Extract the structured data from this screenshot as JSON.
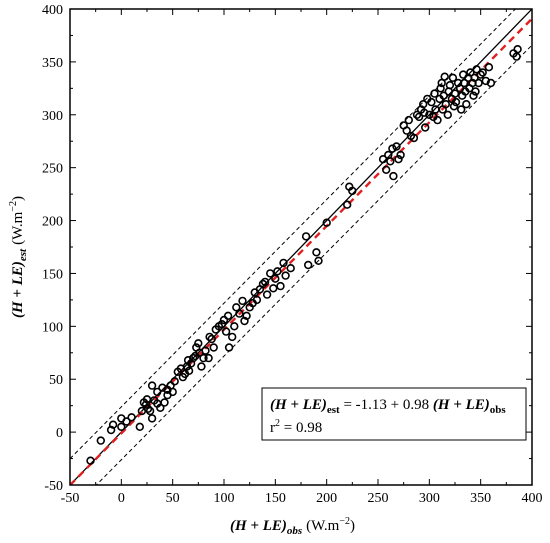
{
  "chart_data": {
    "type": "scatter",
    "xlabel": {
      "main": "(H + LE)",
      "sub": "obs",
      "unit": "(W.m",
      "unit_exp": "−2",
      "unit_close": ")"
    },
    "ylabel": {
      "main": "(H + LE)",
      "sub": "est",
      "unit": "(W.m",
      "unit_exp": "−2",
      "unit_close": ")"
    },
    "xlim": [
      -50,
      400
    ],
    "ylim": [
      -50,
      400
    ],
    "xticks": [
      "-50",
      "0",
      "50",
      "100",
      "150",
      "200",
      "250",
      "300",
      "350",
      "400"
    ],
    "yticks": [
      "-50",
      "0",
      "50",
      "100",
      "150",
      "200",
      "250",
      "300",
      "350",
      "400"
    ],
    "grid": false,
    "legend": {
      "placement": "bottom-right",
      "eq_lhs_main": "(H + LE)",
      "eq_lhs_sub": "est",
      "eq_mid": " = -1.13 + 0.98 ",
      "eq_rhs_main": "(H + LE)",
      "eq_rhs_sub": "obs",
      "r2_base": "r",
      "r2_exp": "2",
      "r2_value": " = 0.98"
    },
    "lines": {
      "one_to_one": {
        "x": [
          -50,
          400
        ],
        "y": [
          -50,
          400
        ],
        "color": "#000000",
        "style": "solid"
      },
      "fit": {
        "x": [
          -50,
          400
        ],
        "y": [
          -50.13,
          390.87
        ],
        "color": "#e02020",
        "style": "dashed"
      },
      "upper_bound": {
        "x": [
          -50,
          400
        ],
        "y": [
          -25.13,
          415.87
        ],
        "color": "#000000",
        "style": "dotted"
      },
      "lower_bound": {
        "x": [
          -50,
          400
        ],
        "y": [
          -75.13,
          365.87
        ],
        "color": "#000000",
        "style": "dotted"
      }
    },
    "points": [
      [
        -30,
        -27
      ],
      [
        -20,
        -8
      ],
      [
        -10,
        2
      ],
      [
        -8,
        7
      ],
      [
        0,
        5
      ],
      [
        0,
        13
      ],
      [
        5,
        10
      ],
      [
        10,
        14
      ],
      [
        18,
        5
      ],
      [
        20,
        20
      ],
      [
        22,
        28
      ],
      [
        24,
        26
      ],
      [
        25,
        31
      ],
      [
        26,
        22
      ],
      [
        28,
        20
      ],
      [
        30,
        13
      ],
      [
        30,
        44
      ],
      [
        32,
        30
      ],
      [
        35,
        27
      ],
      [
        35,
        38
      ],
      [
        38,
        23
      ],
      [
        40,
        42
      ],
      [
        42,
        28
      ],
      [
        45,
        35
      ],
      [
        45,
        40
      ],
      [
        48,
        44
      ],
      [
        50,
        38
      ],
      [
        52,
        48
      ],
      [
        55,
        57
      ],
      [
        58,
        60
      ],
      [
        60,
        52
      ],
      [
        62,
        55
      ],
      [
        64,
        62
      ],
      [
        65,
        68
      ],
      [
        66,
        58
      ],
      [
        68,
        65
      ],
      [
        70,
        70
      ],
      [
        72,
        72
      ],
      [
        73,
        80
      ],
      [
        75,
        84
      ],
      [
        76,
        75
      ],
      [
        78,
        62
      ],
      [
        80,
        70
      ],
      [
        82,
        77
      ],
      [
        85,
        70
      ],
      [
        86,
        90
      ],
      [
        88,
        88
      ],
      [
        90,
        80
      ],
      [
        92,
        97
      ],
      [
        95,
        100
      ],
      [
        98,
        102
      ],
      [
        100,
        106
      ],
      [
        102,
        95
      ],
      [
        104,
        110
      ],
      [
        105,
        80
      ],
      [
        108,
        90
      ],
      [
        110,
        100
      ],
      [
        112,
        118
      ],
      [
        115,
        112
      ],
      [
        118,
        124
      ],
      [
        120,
        105
      ],
      [
        122,
        110
      ],
      [
        125,
        118
      ],
      [
        128,
        122
      ],
      [
        130,
        132
      ],
      [
        132,
        125
      ],
      [
        135,
        135
      ],
      [
        138,
        140
      ],
      [
        140,
        142
      ],
      [
        142,
        130
      ],
      [
        145,
        150
      ],
      [
        148,
        136
      ],
      [
        150,
        145
      ],
      [
        152,
        152
      ],
      [
        155,
        138
      ],
      [
        158,
        160
      ],
      [
        160,
        148
      ],
      [
        165,
        155
      ],
      [
        180,
        185
      ],
      [
        182,
        158
      ],
      [
        190,
        170
      ],
      [
        192,
        162
      ],
      [
        200,
        198
      ],
      [
        220,
        215
      ],
      [
        222,
        232
      ],
      [
        225,
        228
      ],
      [
        255,
        258
      ],
      [
        258,
        248
      ],
      [
        260,
        262
      ],
      [
        262,
        256
      ],
      [
        264,
        268
      ],
      [
        265,
        242
      ],
      [
        268,
        270
      ],
      [
        270,
        258
      ],
      [
        272,
        262
      ],
      [
        275,
        290
      ],
      [
        278,
        285
      ],
      [
        280,
        295
      ],
      [
        282,
        280
      ],
      [
        285,
        278
      ],
      [
        288,
        300
      ],
      [
        290,
        298
      ],
      [
        292,
        305
      ],
      [
        294,
        310
      ],
      [
        295,
        302
      ],
      [
        296,
        288
      ],
      [
        298,
        315
      ],
      [
        300,
        300
      ],
      [
        302,
        312
      ],
      [
        304,
        298
      ],
      [
        305,
        320
      ],
      [
        306,
        305
      ],
      [
        308,
        295
      ],
      [
        310,
        315
      ],
      [
        311,
        325
      ],
      [
        312,
        330
      ],
      [
        313,
        305
      ],
      [
        314,
        318
      ],
      [
        315,
        336
      ],
      [
        316,
        310
      ],
      [
        318,
        300
      ],
      [
        319,
        322
      ],
      [
        320,
        328
      ],
      [
        322,
        315
      ],
      [
        323,
        335
      ],
      [
        324,
        308
      ],
      [
        325,
        320
      ],
      [
        326,
        312
      ],
      [
        328,
        330
      ],
      [
        330,
        325
      ],
      [
        331,
        305
      ],
      [
        332,
        318
      ],
      [
        333,
        338
      ],
      [
        334,
        330
      ],
      [
        335,
        322
      ],
      [
        336,
        310
      ],
      [
        338,
        335
      ],
      [
        339,
        325
      ],
      [
        340,
        340
      ],
      [
        342,
        330
      ],
      [
        343,
        318
      ],
      [
        344,
        335
      ],
      [
        345,
        322
      ],
      [
        346,
        343
      ],
      [
        348,
        330
      ],
      [
        350,
        338
      ],
      [
        352,
        340
      ],
      [
        355,
        332
      ],
      [
        358,
        345
      ],
      [
        360,
        330
      ],
      [
        382,
        358
      ],
      [
        385,
        355
      ],
      [
        386,
        362
      ]
    ]
  }
}
